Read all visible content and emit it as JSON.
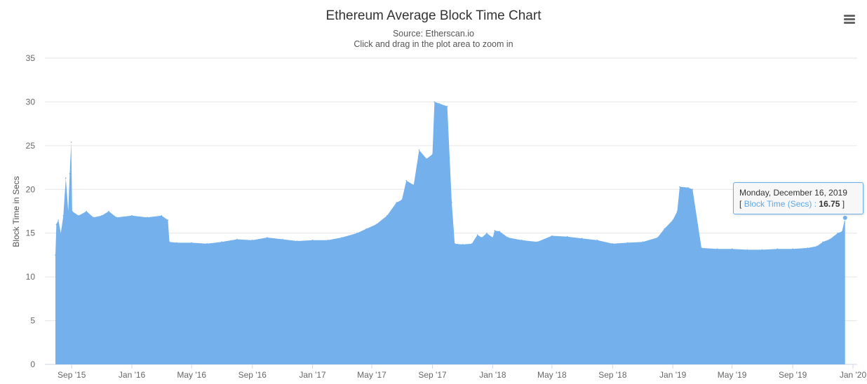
{
  "header": {
    "title": "Ethereum Average Block Time Chart",
    "source": "Source: Etherscan.io",
    "hint": "Click and drag in the plot area to zoom in"
  },
  "menu": {
    "icon": "hamburger-menu-icon"
  },
  "colors": {
    "series": "#73b0ec",
    "grid": "#e6e6e6",
    "axis": "#ccd6eb"
  },
  "tooltip": {
    "date": "Monday, December 16, 2019",
    "open_bracket": "[",
    "series_name": "Block Time (Secs)",
    "separator": " : ",
    "value": "16.75",
    "close_bracket": "]"
  },
  "chart_data": {
    "type": "area",
    "title": "Ethereum Average Block Time Chart",
    "subtitle": "Source: Etherscan.io",
    "ylabel": "Block Time in Secs",
    "xlabel": "",
    "ylim": [
      0,
      35
    ],
    "xlim": [
      "2015-07-30",
      "2020-01-01"
    ],
    "yticks": [
      0,
      5,
      10,
      15,
      20,
      25,
      30,
      35
    ],
    "xticks": [
      "Sep '15",
      "Jan '16",
      "May '16",
      "Sep '16",
      "Jan '17",
      "May '17",
      "Sep '17",
      "Jan '18",
      "May '18",
      "Sep '18",
      "Jan '19",
      "May '19",
      "Sep '19",
      "Jan '20"
    ],
    "xtick_dates": [
      "2015-09-01",
      "2016-01-01",
      "2016-05-01",
      "2016-09-01",
      "2017-01-01",
      "2017-05-01",
      "2017-09-01",
      "2018-01-01",
      "2018-05-01",
      "2018-09-01",
      "2019-01-01",
      "2019-05-01",
      "2019-09-01",
      "2020-01-01"
    ],
    "grid": true,
    "legend": "none",
    "series": [
      {
        "name": "Block Time (Secs)",
        "points": [
          [
            "2015-07-30",
            12.5
          ],
          [
            "2015-08-01",
            16.0
          ],
          [
            "2015-08-05",
            16.5
          ],
          [
            "2015-08-10",
            15.0
          ],
          [
            "2015-08-15",
            17.0
          ],
          [
            "2015-08-20",
            21.3
          ],
          [
            "2015-08-25",
            17.5
          ],
          [
            "2015-08-28",
            21.8
          ],
          [
            "2015-08-31",
            25.4
          ],
          [
            "2015-09-02",
            17.5
          ],
          [
            "2015-09-15",
            17.0
          ],
          [
            "2015-10-01",
            17.5
          ],
          [
            "2015-10-15",
            16.8
          ],
          [
            "2015-11-01",
            17.0
          ],
          [
            "2015-11-15",
            17.5
          ],
          [
            "2015-12-01",
            16.8
          ],
          [
            "2016-01-01",
            17.0
          ],
          [
            "2016-02-01",
            16.8
          ],
          [
            "2016-03-01",
            17.0
          ],
          [
            "2016-03-14",
            16.5
          ],
          [
            "2016-03-17",
            14.0
          ],
          [
            "2016-04-01",
            13.9
          ],
          [
            "2016-05-01",
            13.9
          ],
          [
            "2016-06-01",
            13.8
          ],
          [
            "2016-07-01",
            14.0
          ],
          [
            "2016-08-01",
            14.3
          ],
          [
            "2016-09-01",
            14.2
          ],
          [
            "2016-10-01",
            14.5
          ],
          [
            "2016-11-01",
            14.3
          ],
          [
            "2016-12-01",
            14.1
          ],
          [
            "2017-01-01",
            14.2
          ],
          [
            "2017-02-01",
            14.2
          ],
          [
            "2017-03-01",
            14.5
          ],
          [
            "2017-04-01",
            15.0
          ],
          [
            "2017-04-20",
            15.5
          ],
          [
            "2017-05-10",
            16.0
          ],
          [
            "2017-06-01",
            17.0
          ],
          [
            "2017-06-20",
            18.5
          ],
          [
            "2017-07-01",
            18.8
          ],
          [
            "2017-07-10",
            21.0
          ],
          [
            "2017-07-25",
            20.5
          ],
          [
            "2017-08-05",
            24.5
          ],
          [
            "2017-08-20",
            23.5
          ],
          [
            "2017-09-01",
            24.0
          ],
          [
            "2017-09-05",
            30.0
          ],
          [
            "2017-09-15",
            29.8
          ],
          [
            "2017-10-01",
            29.5
          ],
          [
            "2017-10-10",
            18.5
          ],
          [
            "2017-10-16",
            13.8
          ],
          [
            "2017-11-01",
            13.7
          ],
          [
            "2017-11-20",
            13.8
          ],
          [
            "2017-12-01",
            14.8
          ],
          [
            "2017-12-10",
            14.5
          ],
          [
            "2017-12-20",
            15.0
          ],
          [
            "2018-01-01",
            14.5
          ],
          [
            "2018-01-05",
            15.3
          ],
          [
            "2018-01-15",
            15.2
          ],
          [
            "2018-02-01",
            14.5
          ],
          [
            "2018-03-01",
            14.2
          ],
          [
            "2018-04-01",
            14.0
          ],
          [
            "2018-05-01",
            14.7
          ],
          [
            "2018-06-01",
            14.6
          ],
          [
            "2018-07-01",
            14.4
          ],
          [
            "2018-08-01",
            14.2
          ],
          [
            "2018-09-01",
            13.8
          ],
          [
            "2018-10-01",
            13.9
          ],
          [
            "2018-11-01",
            14.0
          ],
          [
            "2018-12-01",
            14.5
          ],
          [
            "2018-12-15",
            15.5
          ],
          [
            "2019-01-01",
            16.5
          ],
          [
            "2019-01-10",
            17.5
          ],
          [
            "2019-01-15",
            20.3
          ],
          [
            "2019-02-01",
            20.2
          ],
          [
            "2019-02-10",
            20.0
          ],
          [
            "2019-02-28",
            13.3
          ],
          [
            "2019-04-01",
            13.2
          ],
          [
            "2019-05-01",
            13.2
          ],
          [
            "2019-06-01",
            13.1
          ],
          [
            "2019-07-01",
            13.1
          ],
          [
            "2019-08-01",
            13.2
          ],
          [
            "2019-09-01",
            13.2
          ],
          [
            "2019-10-01",
            13.3
          ],
          [
            "2019-10-20",
            13.5
          ],
          [
            "2019-11-01",
            14.0
          ],
          [
            "2019-11-15",
            14.3
          ],
          [
            "2019-12-01",
            15.0
          ],
          [
            "2019-12-10",
            15.2
          ],
          [
            "2019-12-16",
            16.75
          ]
        ]
      }
    ]
  }
}
